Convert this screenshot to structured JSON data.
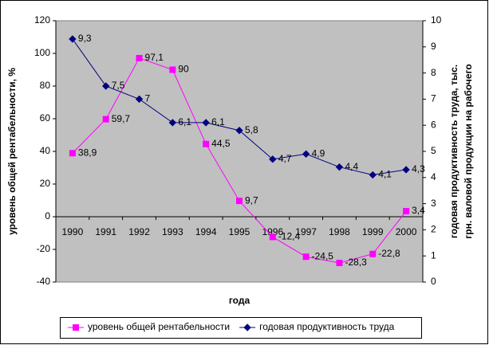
{
  "chart_data": {
    "type": "line",
    "x_label": "года",
    "y_label": "уровень общей рентабельности, %",
    "y2_label": [
      "годовая продуктивность труда, тыс.",
      "грн. валовой продукции на рабочего"
    ],
    "categories": [
      "1990",
      "1991",
      "1992",
      "1993",
      "1994",
      "1995",
      "1996",
      "1997",
      "1998",
      "1999",
      "2000"
    ],
    "series": [
      {
        "name": "уровень общей рентабельности",
        "color": "#ff00ff",
        "marker": "square",
        "values": [
          38.9,
          59.7,
          97.1,
          90,
          44.5,
          9.7,
          -12.4,
          -24.5,
          -28.3,
          -22.8,
          3.4
        ],
        "value_labels": [
          "38,9",
          "59,7",
          "97,1",
          "90",
          "44,5",
          "9,7",
          "-12,4",
          "-24,5",
          "-28,3",
          "-22,8",
          "3,4"
        ]
      },
      {
        "name": "годовая продуктивность труда",
        "color": "#000080",
        "marker": "diamond",
        "axis": "y2",
        "values": [
          9.3,
          7.5,
          7,
          6.1,
          6.1,
          5.8,
          4.7,
          4.9,
          4.4,
          4.1,
          4.3
        ],
        "value_labels": [
          "9,3",
          "7,5",
          "7",
          "6,1",
          "6,1",
          "5,8",
          "4,7",
          "4,9",
          "4,4",
          "4,1",
          "4,3"
        ]
      }
    ],
    "ylim": [
      -40,
      120
    ],
    "yticks": [
      -40,
      -20,
      0,
      20,
      40,
      60,
      80,
      100,
      120
    ],
    "y2lim": [
      0,
      10
    ],
    "y2ticks": [
      0,
      1,
      2,
      3,
      4,
      5,
      6,
      7,
      8,
      9,
      10
    ],
    "plot_background": "#c0c0c0",
    "legend": "bottom"
  }
}
